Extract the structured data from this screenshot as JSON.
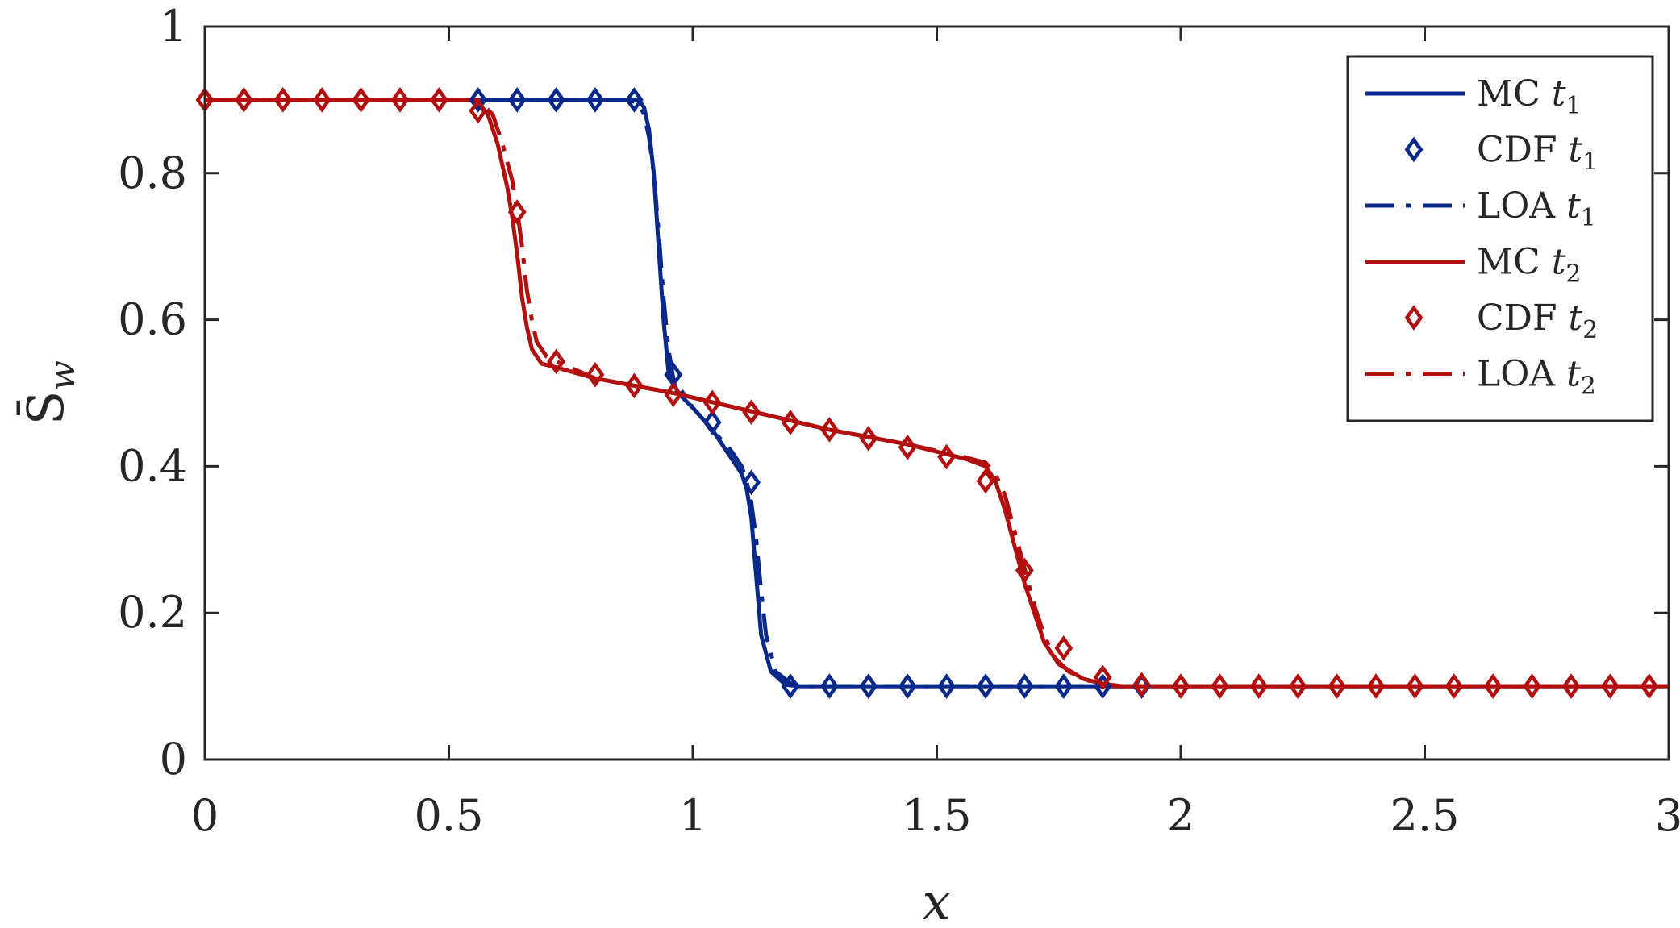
{
  "chart_data": {
    "type": "line",
    "xlabel": "x",
    "ylabel": "S̄w",
    "xlim": [
      0,
      3
    ],
    "ylim": [
      0,
      1
    ],
    "x_ticks": [
      "0",
      "0.5",
      "1",
      "1.5",
      "2",
      "2.5",
      "3"
    ],
    "y_ticks": [
      "0",
      "0.2",
      "0.4",
      "0.6",
      "0.8",
      "1"
    ],
    "grid": false,
    "legend_position": "top-right",
    "colors": {
      "t1": "#08298a",
      "t2": "#b30f0f"
    },
    "series": [
      {
        "name": "MC t1",
        "label": "MC",
        "time": "t",
        "sub": "1",
        "color": "#08298a",
        "style": "solid",
        "x": [
          0,
          0.87,
          0.89,
          0.9,
          0.91,
          0.92,
          0.93,
          0.94,
          0.95,
          0.97,
          1.0,
          1.04,
          1.08,
          1.1,
          1.11,
          1.12,
          1.13,
          1.14,
          1.16,
          1.19,
          1.22,
          1.5,
          2.0,
          3.0
        ],
        "y": [
          0.9,
          0.9,
          0.899,
          0.89,
          0.86,
          0.8,
          0.7,
          0.6,
          0.53,
          0.5,
          0.48,
          0.45,
          0.41,
          0.39,
          0.37,
          0.33,
          0.25,
          0.17,
          0.12,
          0.102,
          0.1,
          0.1,
          0.1,
          0.1
        ]
      },
      {
        "name": "CDF t1",
        "label": "CDF",
        "time": "t",
        "sub": "1",
        "color": "#08298a",
        "style": "markers",
        "x": [
          0.56,
          0.64,
          0.72,
          0.8,
          0.88,
          0.96,
          1.04,
          1.12,
          1.2,
          1.28,
          1.36,
          1.44,
          1.52,
          1.6,
          1.68,
          1.76,
          1.84,
          1.92
        ],
        "y": [
          0.9,
          0.9,
          0.9,
          0.9,
          0.9,
          0.525,
          0.46,
          0.378,
          0.1,
          0.1,
          0.1,
          0.1,
          0.1,
          0.1,
          0.1,
          0.1,
          0.1,
          0.1
        ]
      },
      {
        "name": "LOA t1",
        "label": "LOA",
        "time": "t",
        "sub": "1",
        "color": "#08298a",
        "style": "dashdot",
        "x": [
          0,
          0.87,
          0.89,
          0.9,
          0.91,
          0.92,
          0.93,
          0.94,
          0.95,
          0.96,
          0.98,
          1.0,
          1.04,
          1.08,
          1.1,
          1.11,
          1.12,
          1.13,
          1.14,
          1.15,
          1.17,
          1.2,
          1.23,
          1.5,
          2.0,
          3.0
        ],
        "y": [
          0.9,
          0.9,
          0.895,
          0.88,
          0.85,
          0.8,
          0.72,
          0.63,
          0.56,
          0.52,
          0.5,
          0.48,
          0.45,
          0.42,
          0.4,
          0.38,
          0.35,
          0.3,
          0.23,
          0.17,
          0.12,
          0.104,
          0.1,
          0.1,
          0.1,
          0.1
        ]
      },
      {
        "name": "MC t2",
        "label": "MC",
        "time": "t",
        "sub": "2",
        "color": "#b30f0f",
        "style": "solid",
        "x": [
          0,
          0.55,
          0.58,
          0.6,
          0.62,
          0.63,
          0.64,
          0.65,
          0.66,
          0.67,
          0.69,
          0.72,
          0.8,
          0.96,
          1.12,
          1.28,
          1.44,
          1.56,
          1.6,
          1.62,
          1.64,
          1.66,
          1.68,
          1.7,
          1.72,
          1.75,
          1.8,
          1.86,
          2.0,
          3.0
        ],
        "y": [
          0.9,
          0.9,
          0.88,
          0.84,
          0.78,
          0.74,
          0.69,
          0.63,
          0.59,
          0.56,
          0.54,
          0.535,
          0.52,
          0.5,
          0.475,
          0.45,
          0.43,
          0.41,
          0.4,
          0.38,
          0.34,
          0.29,
          0.24,
          0.2,
          0.16,
          0.13,
          0.11,
          0.1,
          0.1,
          0.1
        ]
      },
      {
        "name": "CDF t2",
        "label": "CDF",
        "time": "t",
        "sub": "2",
        "color": "#b30f0f",
        "style": "markers",
        "x": [
          0,
          0.08,
          0.16,
          0.24,
          0.32,
          0.4,
          0.48,
          0.56,
          0.64,
          0.72,
          0.8,
          0.88,
          0.96,
          1.04,
          1.12,
          1.2,
          1.28,
          1.36,
          1.44,
          1.52,
          1.6,
          1.68,
          1.76,
          1.84,
          1.92,
          2.0,
          2.08,
          2.16,
          2.24,
          2.32,
          2.4,
          2.48,
          2.56,
          2.64,
          2.72,
          2.8,
          2.88,
          2.96
        ],
        "y": [
          0.9,
          0.9,
          0.9,
          0.9,
          0.9,
          0.9,
          0.9,
          0.885,
          0.747,
          0.543,
          0.525,
          0.51,
          0.498,
          0.487,
          0.474,
          0.46,
          0.45,
          0.438,
          0.426,
          0.413,
          0.38,
          0.258,
          0.152,
          0.112,
          0.102,
          0.1,
          0.1,
          0.1,
          0.1,
          0.1,
          0.1,
          0.1,
          0.1,
          0.1,
          0.1,
          0.1,
          0.1,
          0.1
        ]
      },
      {
        "name": "LOA t2",
        "label": "LOA",
        "time": "t",
        "sub": "2",
        "color": "#b30f0f",
        "style": "dashdot",
        "x": [
          0,
          0.56,
          0.59,
          0.61,
          0.63,
          0.64,
          0.65,
          0.66,
          0.67,
          0.68,
          0.7,
          0.73,
          0.8,
          0.96,
          1.12,
          1.28,
          1.44,
          1.56,
          1.6,
          1.62,
          1.64,
          1.66,
          1.68,
          1.7,
          1.72,
          1.74,
          1.77,
          1.82,
          1.88,
          2.0,
          3.0
        ],
        "y": [
          0.9,
          0.9,
          0.88,
          0.84,
          0.79,
          0.75,
          0.7,
          0.64,
          0.6,
          0.57,
          0.55,
          0.54,
          0.52,
          0.5,
          0.475,
          0.45,
          0.43,
          0.412,
          0.405,
          0.39,
          0.36,
          0.31,
          0.26,
          0.21,
          0.17,
          0.14,
          0.12,
          0.105,
          0.1,
          0.1,
          0.1
        ]
      }
    ]
  }
}
